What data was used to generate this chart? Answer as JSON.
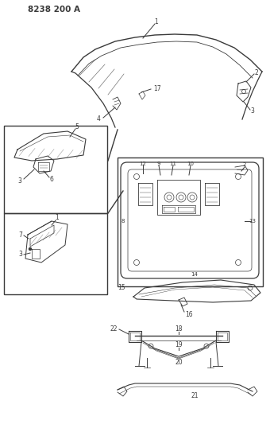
{
  "title": "8238 200 A",
  "bg_color": "#ffffff",
  "line_color": "#3a3a3a",
  "figsize": [
    3.4,
    5.33
  ],
  "dpi": 100
}
